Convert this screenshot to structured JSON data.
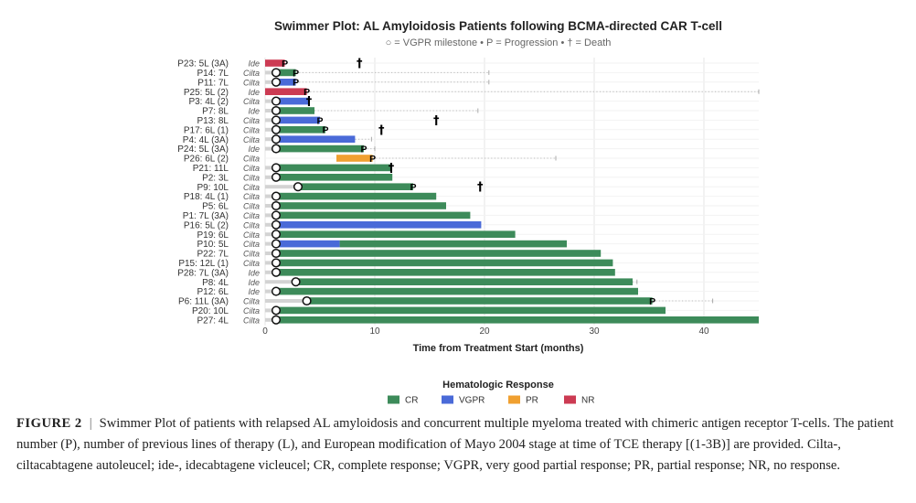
{
  "chart_data": {
    "type": "swimmer",
    "title": "Swimmer Plot: AL Amyloidosis Patients following BCMA-directed CAR T-cell",
    "subtitle": "○ = VGPR milestone • P = Progression • † = Death",
    "xlabel": "Time from Treatment Start (months)",
    "xlim": [
      0,
      45
    ],
    "xticks": [
      0,
      10,
      20,
      30,
      40
    ],
    "grid": true,
    "legend": {
      "title": "Hematologic Response",
      "position": "bottom",
      "entries": [
        {
          "label": "CR",
          "color": "#3d8b5a"
        },
        {
          "label": "VGPR",
          "color": "#4a6ad8"
        },
        {
          "label": "PR",
          "color": "#f0a030"
        },
        {
          "label": "NR",
          "color": "#cc3b53"
        }
      ]
    },
    "colors": {
      "CR": "#3d8b5a",
      "VGPR": "#4a6ad8",
      "PR": "#f0a030",
      "NR": "#cc3b53",
      "pre_response": "#d3d3d3",
      "followup_dots": "#bbbbbb"
    },
    "patients": [
      {
        "label": "P23: 5L (3A)",
        "product": "Ide",
        "segments": [
          {
            "start": 0,
            "end": 1.8,
            "response": "NR"
          }
        ],
        "vgpr": null,
        "progression": 1.8,
        "death": 8.6,
        "last_followup": null
      },
      {
        "label": "P14: 7L",
        "product": "Cilta",
        "segments": [
          {
            "start": 0,
            "end": 1.0,
            "response": "pre"
          },
          {
            "start": 1.0,
            "end": 2.8,
            "response": "CR"
          }
        ],
        "vgpr": 1.0,
        "progression": 2.8,
        "death": null,
        "last_followup": 20.4
      },
      {
        "label": "P11: 7L",
        "product": "Cilta",
        "segments": [
          {
            "start": 0,
            "end": 1.0,
            "response": "pre"
          },
          {
            "start": 1.0,
            "end": 2.8,
            "response": "VGPR"
          }
        ],
        "vgpr": 1.0,
        "progression": 2.8,
        "death": null,
        "last_followup": 20.4
      },
      {
        "label": "P25: 5L (2)",
        "product": "Ide",
        "segments": [
          {
            "start": 0,
            "end": 3.8,
            "response": "NR"
          }
        ],
        "vgpr": null,
        "progression": 3.8,
        "death": null,
        "last_followup": 45.0
      },
      {
        "label": "P3: 4L (2)",
        "product": "Cilta",
        "segments": [
          {
            "start": 0,
            "end": 1.0,
            "response": "pre"
          },
          {
            "start": 1.0,
            "end": 4.0,
            "response": "VGPR"
          }
        ],
        "vgpr": 1.0,
        "progression": null,
        "death": 4.0,
        "last_followup": null
      },
      {
        "label": "P7: 8L",
        "product": "Ide",
        "segments": [
          {
            "start": 0,
            "end": 1.0,
            "response": "pre"
          },
          {
            "start": 1.0,
            "end": 4.5,
            "response": "CR"
          }
        ],
        "vgpr": 1.0,
        "progression": null,
        "death": null,
        "last_followup": 19.4
      },
      {
        "label": "P13: 8L",
        "product": "Cilta",
        "segments": [
          {
            "start": 0,
            "end": 1.0,
            "response": "pre"
          },
          {
            "start": 1.0,
            "end": 5.0,
            "response": "VGPR"
          }
        ],
        "vgpr": 1.0,
        "progression": 5.0,
        "death": 15.6,
        "last_followup": null
      },
      {
        "label": "P17: 6L (1)",
        "product": "Cilta",
        "segments": [
          {
            "start": 0,
            "end": 1.0,
            "response": "pre"
          },
          {
            "start": 1.0,
            "end": 5.5,
            "response": "CR"
          }
        ],
        "vgpr": 1.0,
        "progression": 5.5,
        "death": 10.6,
        "last_followup": null
      },
      {
        "label": "P4: 4L (3A)",
        "product": "Cilta",
        "segments": [
          {
            "start": 0,
            "end": 1.0,
            "response": "pre"
          },
          {
            "start": 1.0,
            "end": 8.2,
            "response": "VGPR"
          }
        ],
        "vgpr": 1.0,
        "progression": null,
        "death": null,
        "last_followup": 9.7
      },
      {
        "label": "P24: 5L (3A)",
        "product": "Ide",
        "segments": [
          {
            "start": 0,
            "end": 1.0,
            "response": "pre"
          },
          {
            "start": 1.0,
            "end": 9.0,
            "response": "CR"
          }
        ],
        "vgpr": 1.0,
        "progression": 9.0,
        "death": null,
        "last_followup": 10.0
      },
      {
        "label": "P26: 6L (2)",
        "product": "Cilta",
        "segments": [
          {
            "start": 6.5,
            "end": 9.8,
            "response": "PR"
          }
        ],
        "vgpr": null,
        "progression": 9.8,
        "death": null,
        "last_followup": 26.5
      },
      {
        "label": "P21: 11L",
        "product": "Cilta",
        "segments": [
          {
            "start": 0,
            "end": 1.0,
            "response": "pre"
          },
          {
            "start": 1.0,
            "end": 11.5,
            "response": "CR"
          }
        ],
        "vgpr": 1.0,
        "progression": null,
        "death": 11.5,
        "last_followup": null
      },
      {
        "label": "P2: 3L",
        "product": "Cilta",
        "segments": [
          {
            "start": 0,
            "end": 1.0,
            "response": "pre"
          },
          {
            "start": 1.0,
            "end": 11.6,
            "response": "CR"
          }
        ],
        "vgpr": 1.0,
        "progression": null,
        "death": null,
        "last_followup": null
      },
      {
        "label": "P9: 10L",
        "product": "Cilta",
        "segments": [
          {
            "start": 0,
            "end": 3.0,
            "response": "pre"
          },
          {
            "start": 3.0,
            "end": 13.5,
            "response": "CR"
          }
        ],
        "vgpr": 3.0,
        "progression": 13.5,
        "death": 19.6,
        "last_followup": null
      },
      {
        "label": "P18: 4L (1)",
        "product": "Cilta",
        "segments": [
          {
            "start": 0,
            "end": 1.0,
            "response": "pre"
          },
          {
            "start": 1.0,
            "end": 15.6,
            "response": "CR"
          }
        ],
        "vgpr": 1.0,
        "progression": null,
        "death": null,
        "last_followup": null
      },
      {
        "label": "P5: 6L",
        "product": "Cilta",
        "segments": [
          {
            "start": 0,
            "end": 1.0,
            "response": "pre"
          },
          {
            "start": 1.0,
            "end": 16.5,
            "response": "CR"
          }
        ],
        "vgpr": 1.0,
        "progression": null,
        "death": null,
        "last_followup": null
      },
      {
        "label": "P1: 7L (3A)",
        "product": "Cilta",
        "segments": [
          {
            "start": 0,
            "end": 1.0,
            "response": "pre"
          },
          {
            "start": 1.0,
            "end": 18.7,
            "response": "CR"
          }
        ],
        "vgpr": 1.0,
        "progression": null,
        "death": null,
        "last_followup": null
      },
      {
        "label": "P16: 5L (2)",
        "product": "Cilta",
        "segments": [
          {
            "start": 0,
            "end": 1.0,
            "response": "pre"
          },
          {
            "start": 1.0,
            "end": 19.7,
            "response": "VGPR"
          }
        ],
        "vgpr": 1.0,
        "progression": null,
        "death": null,
        "last_followup": null
      },
      {
        "label": "P19: 6L",
        "product": "Cilta",
        "segments": [
          {
            "start": 0,
            "end": 1.0,
            "response": "pre"
          },
          {
            "start": 1.0,
            "end": 22.8,
            "response": "CR"
          }
        ],
        "vgpr": 1.0,
        "progression": null,
        "death": null,
        "last_followup": null
      },
      {
        "label": "P10: 5L",
        "product": "Cilta",
        "segments": [
          {
            "start": 0,
            "end": 1.0,
            "response": "pre"
          },
          {
            "start": 1.0,
            "end": 6.8,
            "response": "VGPR"
          },
          {
            "start": 6.8,
            "end": 27.5,
            "response": "CR"
          }
        ],
        "vgpr": 1.0,
        "progression": null,
        "death": null,
        "last_followup": null
      },
      {
        "label": "P22: 7L",
        "product": "Cilta",
        "segments": [
          {
            "start": 0,
            "end": 1.0,
            "response": "pre"
          },
          {
            "start": 1.0,
            "end": 30.6,
            "response": "CR"
          }
        ],
        "vgpr": 1.0,
        "progression": null,
        "death": null,
        "last_followup": null
      },
      {
        "label": "P15: 12L (1)",
        "product": "Cilta",
        "segments": [
          {
            "start": 0,
            "end": 1.0,
            "response": "pre"
          },
          {
            "start": 1.0,
            "end": 31.7,
            "response": "CR"
          }
        ],
        "vgpr": 1.0,
        "progression": null,
        "death": null,
        "last_followup": null
      },
      {
        "label": "P28: 7L (3A)",
        "product": "Ide",
        "segments": [
          {
            "start": 0,
            "end": 1.0,
            "response": "pre"
          },
          {
            "start": 1.0,
            "end": 31.9,
            "response": "CR"
          }
        ],
        "vgpr": 1.0,
        "progression": null,
        "death": null,
        "last_followup": null
      },
      {
        "label": "P8: 4L",
        "product": "Ide",
        "segments": [
          {
            "start": 0,
            "end": 2.8,
            "response": "pre"
          },
          {
            "start": 2.8,
            "end": 33.5,
            "response": "CR"
          }
        ],
        "vgpr": 2.8,
        "progression": null,
        "death": null,
        "last_followup": 33.9
      },
      {
        "label": "P12: 6L",
        "product": "Ide",
        "segments": [
          {
            "start": 0,
            "end": 1.0,
            "response": "pre"
          },
          {
            "start": 1.0,
            "end": 34.0,
            "response": "CR"
          }
        ],
        "vgpr": 1.0,
        "progression": null,
        "death": null,
        "last_followup": null
      },
      {
        "label": "P6: 11L (3A)",
        "product": "Cilta",
        "segments": [
          {
            "start": 0,
            "end": 3.8,
            "response": "pre"
          },
          {
            "start": 3.8,
            "end": 35.3,
            "response": "CR"
          }
        ],
        "vgpr": 3.8,
        "progression": 35.3,
        "death": null,
        "last_followup": 40.8
      },
      {
        "label": "P20: 10L",
        "product": "Cilta",
        "segments": [
          {
            "start": 0,
            "end": 1.0,
            "response": "pre"
          },
          {
            "start": 1.0,
            "end": 36.5,
            "response": "CR"
          }
        ],
        "vgpr": 1.0,
        "progression": null,
        "death": null,
        "last_followup": null
      },
      {
        "label": "P27: 4L",
        "product": "Cilta",
        "segments": [
          {
            "start": 0,
            "end": 1.0,
            "response": "pre"
          },
          {
            "start": 1.0,
            "end": 45.0,
            "response": "CR"
          }
        ],
        "vgpr": 1.0,
        "progression": null,
        "death": null,
        "last_followup": null
      }
    ]
  },
  "caption": {
    "figure_label": "FIGURE 2",
    "separator": "|",
    "text": "Swimmer Plot of patients with relapsed AL amyloidosis and concurrent multiple myeloma treated with chimeric antigen receptor T-cells. The patient number (P), number of previous lines of therapy (L), and European modification of Mayo 2004 stage at time of TCE therapy [(1-3B)] are provided. Cilta-, ciltacabtagene autoleucel; ide-, idecabtagene vicleucel; CR, complete response; VGPR, very good partial response; PR, partial response; NR, no response."
  }
}
